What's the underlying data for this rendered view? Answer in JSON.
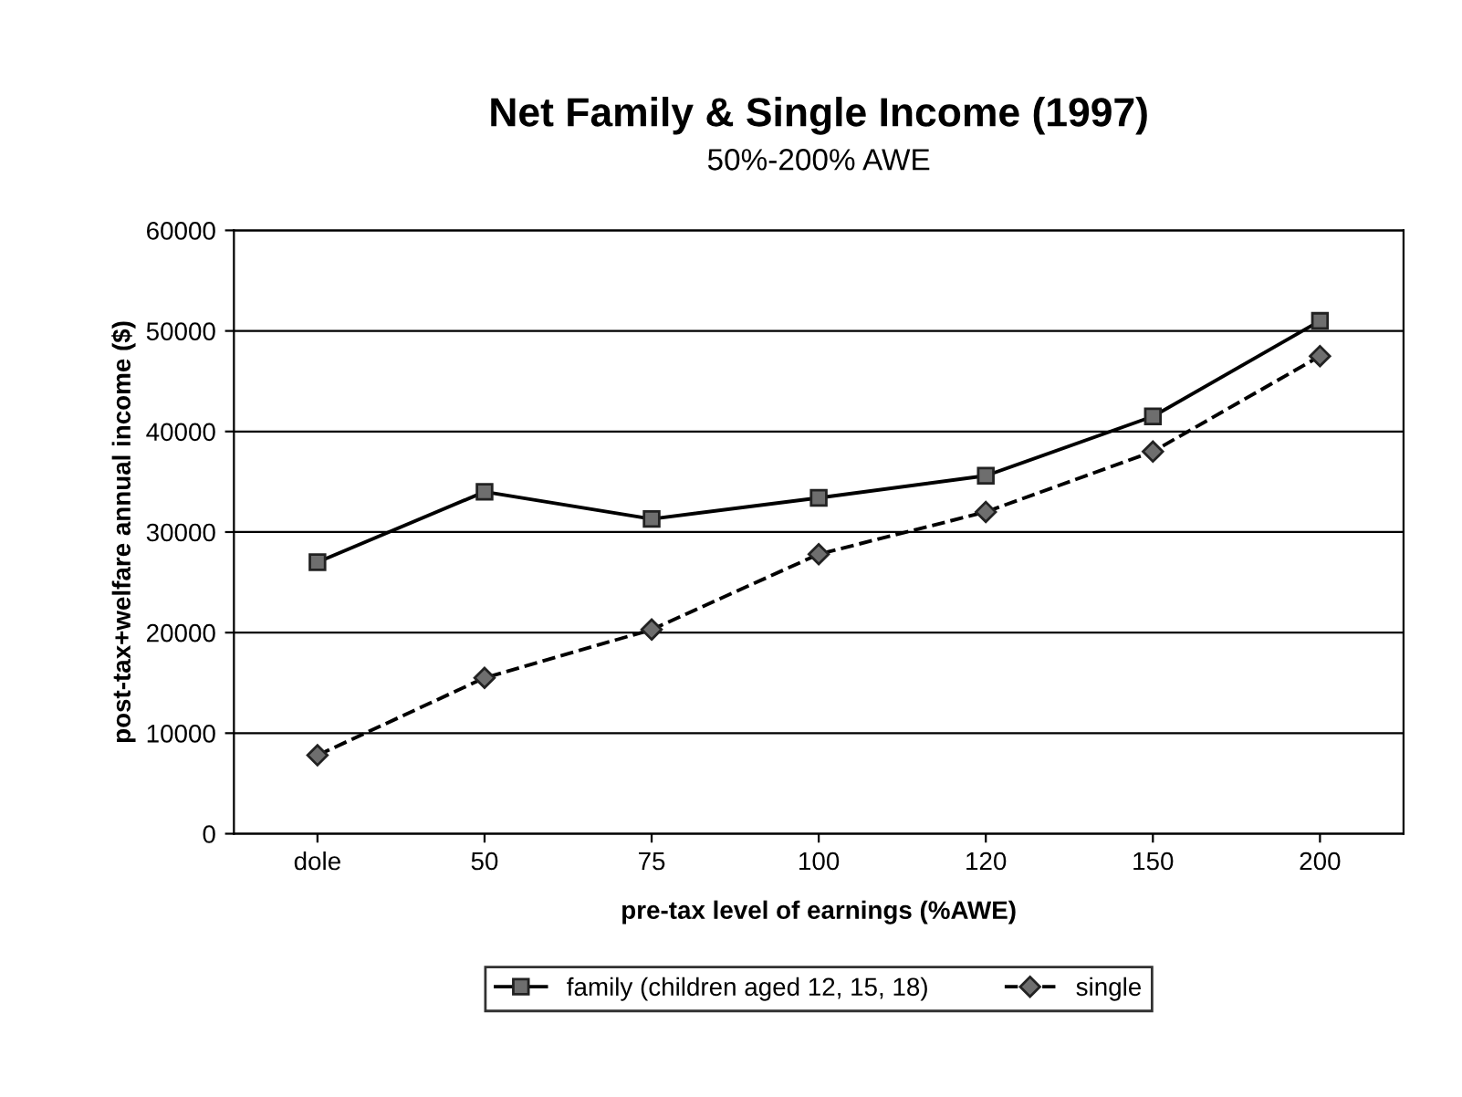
{
  "chart_data": {
    "type": "line",
    "title": "Net Family & Single Income (1997)",
    "subtitle": "50%-200% AWE",
    "xlabel": "pre-tax level of earnings (%AWE)",
    "ylabel": "post-tax+welfare annual income ($)",
    "categories": [
      "dole",
      "50",
      "75",
      "100",
      "120",
      "150",
      "200"
    ],
    "series": [
      {
        "name": "family (children aged 12, 15, 18)",
        "color": "#000000",
        "marker": "square",
        "line_style": "solid",
        "values": [
          27000,
          34000,
          31300,
          33400,
          35600,
          41500,
          51000
        ]
      },
      {
        "name": "single",
        "color": "#000000",
        "marker": "diamond",
        "line_style": "dashed",
        "values": [
          7800,
          15500,
          20300,
          27800,
          32000,
          38000,
          47500
        ]
      }
    ],
    "ylim": [
      0,
      60000
    ],
    "yticks": [
      0,
      10000,
      20000,
      30000,
      40000,
      50000,
      60000
    ],
    "grid": "y",
    "legend": "bottom"
  }
}
